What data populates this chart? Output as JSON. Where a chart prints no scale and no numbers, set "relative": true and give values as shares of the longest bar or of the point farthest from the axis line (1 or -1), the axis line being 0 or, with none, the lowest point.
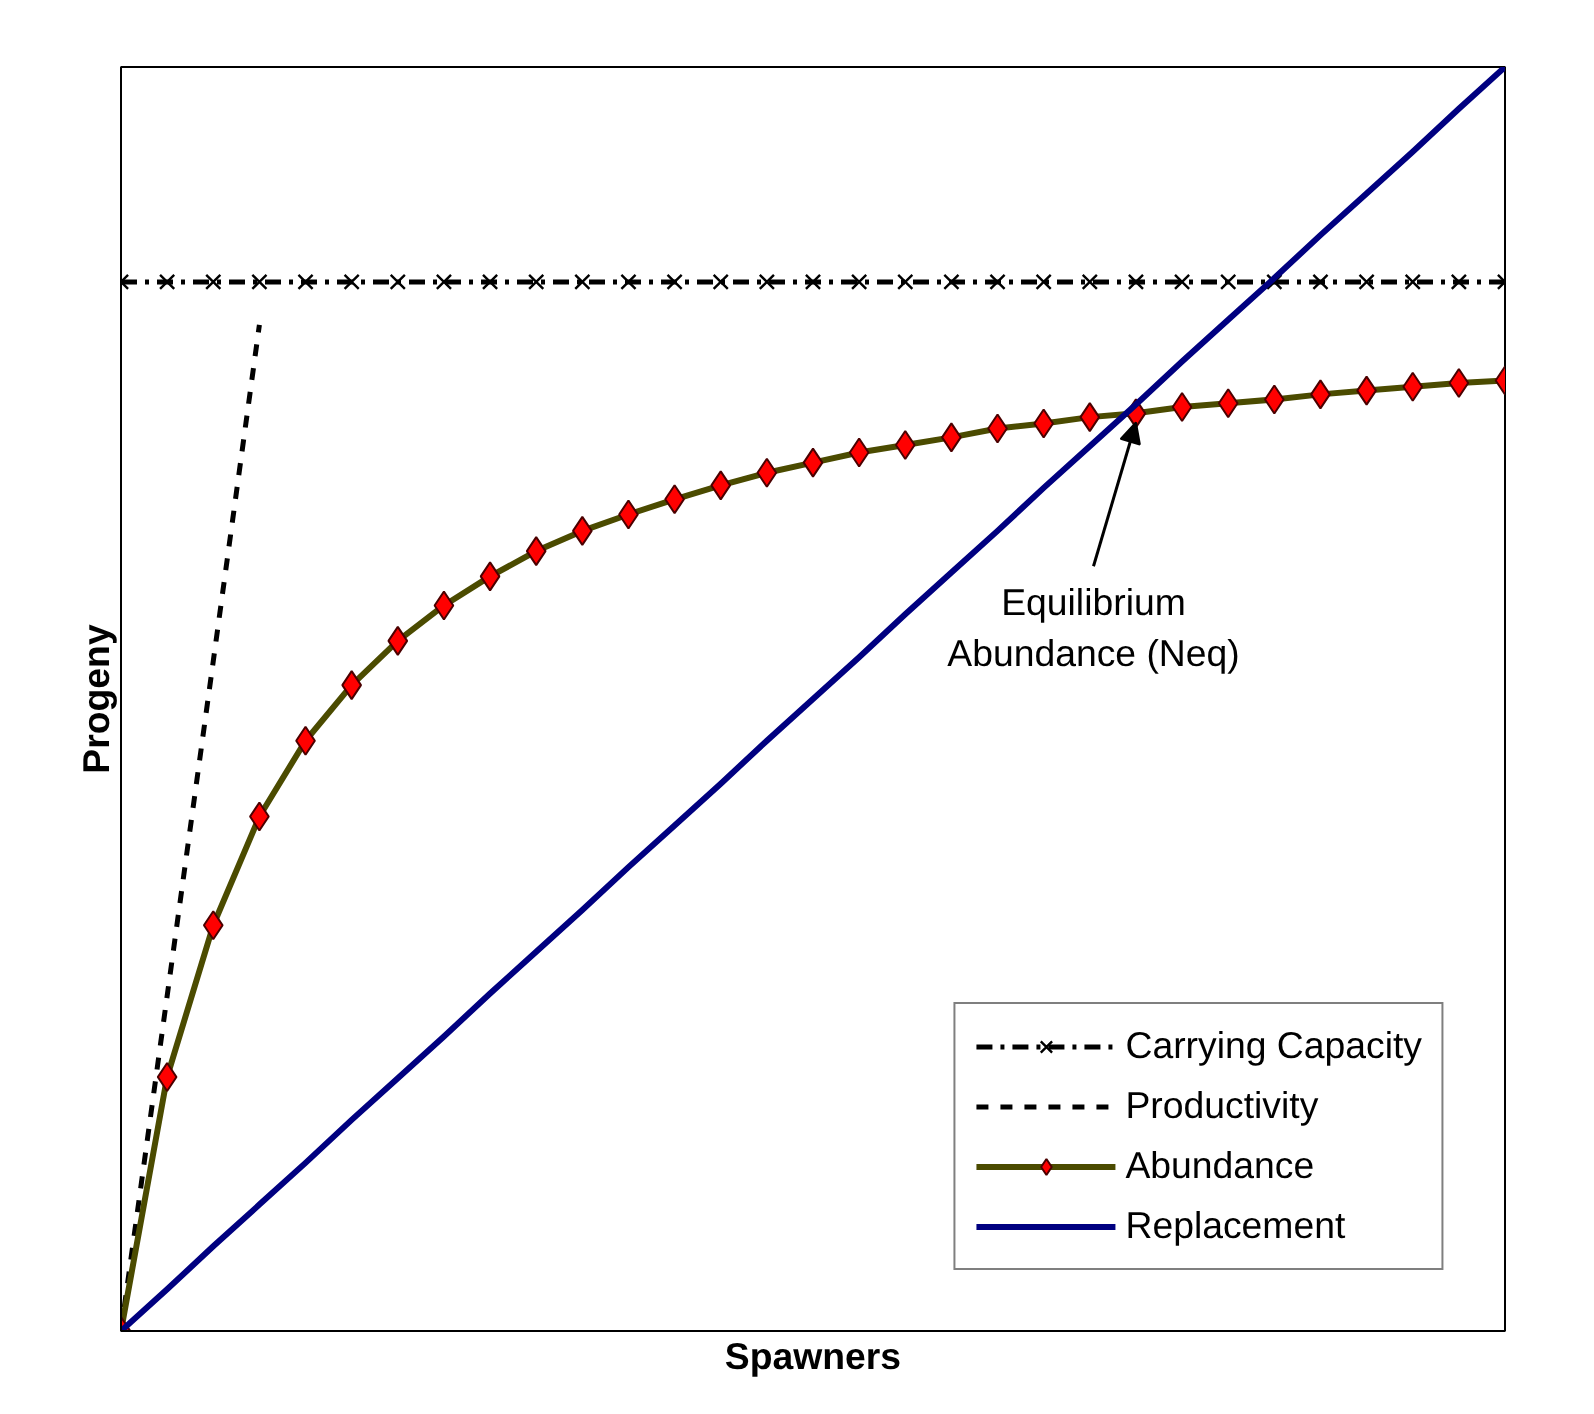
{
  "chart_data": {
    "type": "line",
    "relative": true,
    "xlabel": "Spawners",
    "ylabel": "Progeny",
    "legend": "bottom right",
    "categories": [
      null,
      null,
      null,
      null,
      null,
      null,
      null,
      null,
      null,
      null,
      null,
      null,
      null,
      null,
      null,
      null,
      null,
      null,
      null,
      null,
      null,
      null,
      null,
      null,
      null,
      null,
      null,
      null,
      null,
      null,
      null
    ],
    "series": [
      {
        "name": "Carrying Capacity",
        "color": "#000000",
        "line_style": "dashed",
        "marker": "cross",
        "values": [
          0.83,
          0.83,
          0.83,
          0.83,
          0.83,
          0.83,
          0.83,
          0.83,
          0.83,
          0.83,
          0.83,
          0.83,
          0.83,
          0.83,
          0.83,
          0.83,
          0.83,
          0.83,
          0.83,
          0.83,
          0.83,
          0.83,
          0.83,
          0.83,
          0.83,
          0.83,
          0.83,
          0.83,
          0.83,
          0.83,
          0.83
        ]
      },
      {
        "name": "Productivity",
        "color": "#000000",
        "line_style": "dotted",
        "marker": "none",
        "values": [
          0,
          0.265,
          0.53,
          0.796,
          null,
          null,
          null,
          null,
          null,
          null,
          null,
          null,
          null,
          null,
          null,
          null,
          null,
          null,
          null,
          null,
          null,
          null,
          null,
          null,
          null,
          null,
          null,
          null,
          null,
          null,
          null
        ]
      },
      {
        "name": "Abundance",
        "color": "#4b4b00",
        "marker": "diamond",
        "line_style": "solid",
        "values": [
          0,
          0.201,
          0.321,
          0.407,
          0.467,
          0.511,
          0.546,
          0.574,
          0.597,
          0.617,
          0.633,
          0.646,
          0.658,
          0.669,
          0.679,
          0.687,
          0.695,
          0.701,
          0.707,
          0.714,
          0.718,
          0.723,
          0.726,
          0.731,
          0.734,
          0.737,
          0.741,
          0.744,
          0.747,
          0.75,
          0.752
        ]
      },
      {
        "name": "Replacement",
        "color": "#000080",
        "marker": "none",
        "line_style": "solid",
        "values": [
          0,
          0.033,
          0.067,
          0.1,
          0.133,
          0.167,
          0.2,
          0.233,
          0.267,
          0.3,
          0.333,
          0.367,
          0.4,
          0.433,
          0.467,
          0.5,
          0.533,
          0.567,
          0.6,
          0.633,
          0.667,
          0.7,
          0.733,
          0.767,
          0.8,
          0.833,
          0.867,
          0.9,
          0.933,
          0.967,
          1
        ]
      }
    ],
    "annotations": [
      "Equilibrium\nAbundance (Neq)"
    ]
  }
}
